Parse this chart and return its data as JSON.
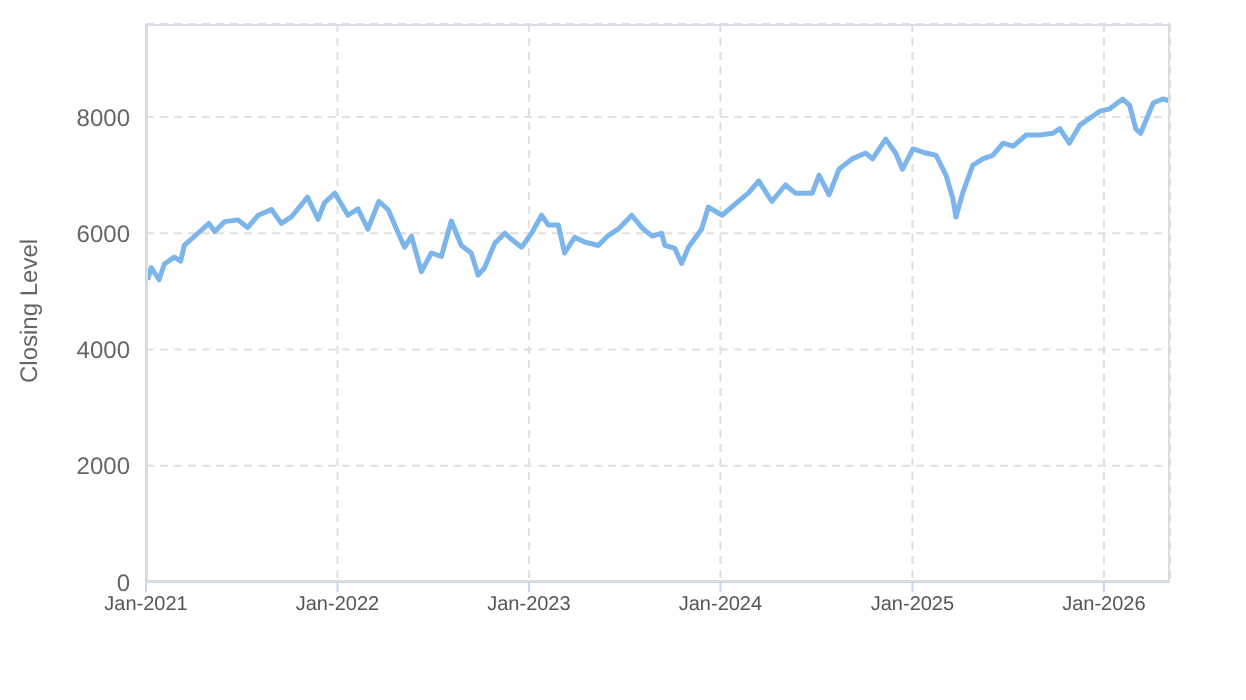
{
  "chart_data": {
    "type": "line",
    "ylabel": "Closing Level",
    "x": [
      "2021-01-04",
      "2021-01-11",
      "2021-01-26",
      "2021-02-05",
      "2021-02-24",
      "2021-03-08",
      "2021-03-15",
      "2021-04-10",
      "2021-05-01",
      "2021-05-12",
      "2021-05-31",
      "2021-06-25",
      "2021-07-14",
      "2021-08-03",
      "2021-08-28",
      "2021-09-16",
      "2021-10-05",
      "2021-11-05",
      "2021-11-25",
      "2021-12-07",
      "2021-12-27",
      "2022-01-21",
      "2022-02-09",
      "2022-02-28",
      "2022-03-21",
      "2022-04-08",
      "2022-04-27",
      "2022-05-09",
      "2022-05-22",
      "2022-06-10",
      "2022-06-29",
      "2022-07-18",
      "2022-08-06",
      "2022-08-25",
      "2022-09-13",
      "2022-09-26",
      "2022-10-08",
      "2022-10-28",
      "2022-11-16",
      "2022-11-28",
      "2022-12-18",
      "2023-01-06",
      "2023-01-25",
      "2023-02-07",
      "2023-02-26",
      "2023-03-10",
      "2023-03-29",
      "2023-04-17",
      "2023-05-13",
      "2023-06-01",
      "2023-06-20",
      "2023-07-16",
      "2023-08-04",
      "2023-08-10",
      "2023-08-24",
      "2023-09-11",
      "2023-09-17",
      "2023-10-06",
      "2023-10-19",
      "2023-11-01",
      "2023-11-26",
      "2023-12-09",
      "2024-01-04",
      "2024-01-29",
      "2024-02-23",
      "2024-03-14",
      "2024-04-08",
      "2024-05-04",
      "2024-05-23",
      "2024-06-24",
      "2024-07-07",
      "2024-07-26",
      "2024-08-14",
      "2024-09-08",
      "2024-10-04",
      "2024-10-17",
      "2024-11-11",
      "2024-11-30",
      "2024-12-13",
      "2025-01-02",
      "2025-01-27",
      "2025-02-15",
      "2025-03-06",
      "2025-03-19",
      "2025-03-25",
      "2025-04-07",
      "2025-04-26",
      "2025-05-15",
      "2025-06-03",
      "2025-06-23",
      "2025-07-12",
      "2025-08-06",
      "2025-09-01",
      "2025-09-26",
      "2025-10-09",
      "2025-10-27",
      "2025-11-16",
      "2025-12-24",
      "2026-01-12",
      "2026-02-06",
      "2026-02-19",
      "2026-03-03",
      "2026-03-12",
      "2026-04-05",
      "2026-04-23",
      "2026-05-06"
    ],
    "series": [
      {
        "color": "#7cb5ec",
        "values": [
          5200,
          5410,
          5200,
          5470,
          5590,
          5520,
          5790,
          6000,
          6170,
          6030,
          6200,
          6230,
          6100,
          6310,
          6410,
          6170,
          6280,
          6620,
          6240,
          6520,
          6690,
          6310,
          6420,
          6070,
          6550,
          6400,
          6000,
          5760,
          5950,
          5340,
          5660,
          5600,
          6210,
          5790,
          5660,
          5280,
          5400,
          5830,
          6000,
          5900,
          5760,
          6000,
          6310,
          6140,
          6140,
          5660,
          5930,
          5850,
          5790,
          5960,
          6070,
          6310,
          6100,
          6050,
          5950,
          6000,
          5790,
          5740,
          5480,
          5760,
          6070,
          6450,
          6310,
          6500,
          6690,
          6900,
          6550,
          6830,
          6690,
          6690,
          7000,
          6660,
          7100,
          7280,
          7380,
          7280,
          7620,
          7380,
          7100,
          7450,
          7380,
          7340,
          7000,
          6600,
          6280,
          6700,
          7170,
          7280,
          7340,
          7550,
          7500,
          7690,
          7690,
          7720,
          7800,
          7550,
          7860,
          8100,
          8140,
          8310,
          8200,
          7790,
          7720,
          8240,
          8310,
          8280
        ]
      }
    ],
    "xlim": [
      "2021-01-01",
      "2026-05-07"
    ],
    "xticks": [
      {
        "value": "2021-01-01",
        "label": "Jan-2021"
      },
      {
        "value": "2022-01-01",
        "label": "Jan-2022"
      },
      {
        "value": "2023-01-01",
        "label": "Jan-2023"
      },
      {
        "value": "2024-01-01",
        "label": "Jan-2024"
      },
      {
        "value": "2025-01-01",
        "label": "Jan-2025"
      },
      {
        "value": "2026-01-01",
        "label": "Jan-2026"
      }
    ],
    "ylim": [
      0,
      9600
    ],
    "yticks": [
      0,
      2000,
      4000,
      6000,
      8000
    ],
    "grid": true,
    "legend": false,
    "marker": "none",
    "line_style": "solid"
  }
}
